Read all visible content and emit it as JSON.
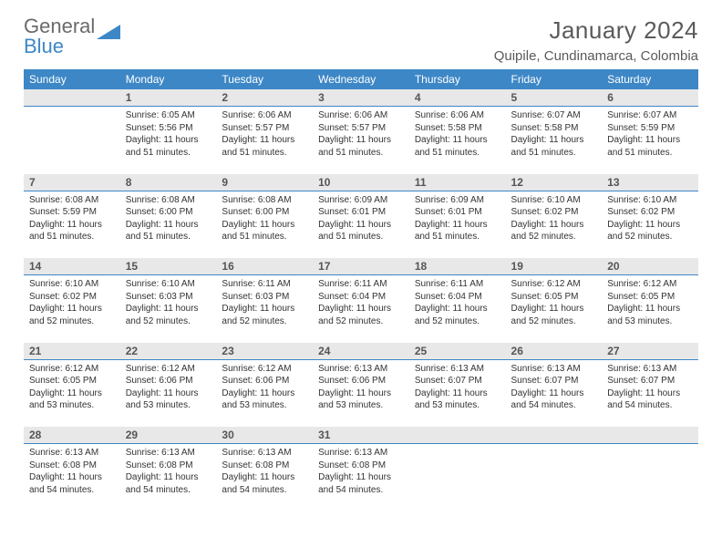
{
  "brand": {
    "part1": "General",
    "part2": "Blue"
  },
  "title": "January 2024",
  "location": "Quipile, Cundinamarca, Colombia",
  "colors": {
    "header_bg": "#3d87c7",
    "header_text": "#ffffff",
    "daynum_bg": "#e8e8e8",
    "daynum_text": "#555555",
    "title_text": "#5a5a5a",
    "body_text": "#333333",
    "divider": "#3d87c7",
    "page_bg": "#ffffff"
  },
  "fonts": {
    "title_size": 26,
    "location_size": 15,
    "th_size": 12,
    "daynum_size": 12,
    "cell_size": 10
  },
  "weekdays": [
    "Sunday",
    "Monday",
    "Tuesday",
    "Wednesday",
    "Thursday",
    "Friday",
    "Saturday"
  ],
  "weeks": [
    [
      {
        "n": "",
        "sr": "",
        "ss": "",
        "dl": ""
      },
      {
        "n": "1",
        "sr": "Sunrise: 6:05 AM",
        "ss": "Sunset: 5:56 PM",
        "dl": "Daylight: 11 hours and 51 minutes."
      },
      {
        "n": "2",
        "sr": "Sunrise: 6:06 AM",
        "ss": "Sunset: 5:57 PM",
        "dl": "Daylight: 11 hours and 51 minutes."
      },
      {
        "n": "3",
        "sr": "Sunrise: 6:06 AM",
        "ss": "Sunset: 5:57 PM",
        "dl": "Daylight: 11 hours and 51 minutes."
      },
      {
        "n": "4",
        "sr": "Sunrise: 6:06 AM",
        "ss": "Sunset: 5:58 PM",
        "dl": "Daylight: 11 hours and 51 minutes."
      },
      {
        "n": "5",
        "sr": "Sunrise: 6:07 AM",
        "ss": "Sunset: 5:58 PM",
        "dl": "Daylight: 11 hours and 51 minutes."
      },
      {
        "n": "6",
        "sr": "Sunrise: 6:07 AM",
        "ss": "Sunset: 5:59 PM",
        "dl": "Daylight: 11 hours and 51 minutes."
      }
    ],
    [
      {
        "n": "7",
        "sr": "Sunrise: 6:08 AM",
        "ss": "Sunset: 5:59 PM",
        "dl": "Daylight: 11 hours and 51 minutes."
      },
      {
        "n": "8",
        "sr": "Sunrise: 6:08 AM",
        "ss": "Sunset: 6:00 PM",
        "dl": "Daylight: 11 hours and 51 minutes."
      },
      {
        "n": "9",
        "sr": "Sunrise: 6:08 AM",
        "ss": "Sunset: 6:00 PM",
        "dl": "Daylight: 11 hours and 51 minutes."
      },
      {
        "n": "10",
        "sr": "Sunrise: 6:09 AM",
        "ss": "Sunset: 6:01 PM",
        "dl": "Daylight: 11 hours and 51 minutes."
      },
      {
        "n": "11",
        "sr": "Sunrise: 6:09 AM",
        "ss": "Sunset: 6:01 PM",
        "dl": "Daylight: 11 hours and 51 minutes."
      },
      {
        "n": "12",
        "sr": "Sunrise: 6:10 AM",
        "ss": "Sunset: 6:02 PM",
        "dl": "Daylight: 11 hours and 52 minutes."
      },
      {
        "n": "13",
        "sr": "Sunrise: 6:10 AM",
        "ss": "Sunset: 6:02 PM",
        "dl": "Daylight: 11 hours and 52 minutes."
      }
    ],
    [
      {
        "n": "14",
        "sr": "Sunrise: 6:10 AM",
        "ss": "Sunset: 6:02 PM",
        "dl": "Daylight: 11 hours and 52 minutes."
      },
      {
        "n": "15",
        "sr": "Sunrise: 6:10 AM",
        "ss": "Sunset: 6:03 PM",
        "dl": "Daylight: 11 hours and 52 minutes."
      },
      {
        "n": "16",
        "sr": "Sunrise: 6:11 AM",
        "ss": "Sunset: 6:03 PM",
        "dl": "Daylight: 11 hours and 52 minutes."
      },
      {
        "n": "17",
        "sr": "Sunrise: 6:11 AM",
        "ss": "Sunset: 6:04 PM",
        "dl": "Daylight: 11 hours and 52 minutes."
      },
      {
        "n": "18",
        "sr": "Sunrise: 6:11 AM",
        "ss": "Sunset: 6:04 PM",
        "dl": "Daylight: 11 hours and 52 minutes."
      },
      {
        "n": "19",
        "sr": "Sunrise: 6:12 AM",
        "ss": "Sunset: 6:05 PM",
        "dl": "Daylight: 11 hours and 52 minutes."
      },
      {
        "n": "20",
        "sr": "Sunrise: 6:12 AM",
        "ss": "Sunset: 6:05 PM",
        "dl": "Daylight: 11 hours and 53 minutes."
      }
    ],
    [
      {
        "n": "21",
        "sr": "Sunrise: 6:12 AM",
        "ss": "Sunset: 6:05 PM",
        "dl": "Daylight: 11 hours and 53 minutes."
      },
      {
        "n": "22",
        "sr": "Sunrise: 6:12 AM",
        "ss": "Sunset: 6:06 PM",
        "dl": "Daylight: 11 hours and 53 minutes."
      },
      {
        "n": "23",
        "sr": "Sunrise: 6:12 AM",
        "ss": "Sunset: 6:06 PM",
        "dl": "Daylight: 11 hours and 53 minutes."
      },
      {
        "n": "24",
        "sr": "Sunrise: 6:13 AM",
        "ss": "Sunset: 6:06 PM",
        "dl": "Daylight: 11 hours and 53 minutes."
      },
      {
        "n": "25",
        "sr": "Sunrise: 6:13 AM",
        "ss": "Sunset: 6:07 PM",
        "dl": "Daylight: 11 hours and 53 minutes."
      },
      {
        "n": "26",
        "sr": "Sunrise: 6:13 AM",
        "ss": "Sunset: 6:07 PM",
        "dl": "Daylight: 11 hours and 54 minutes."
      },
      {
        "n": "27",
        "sr": "Sunrise: 6:13 AM",
        "ss": "Sunset: 6:07 PM",
        "dl": "Daylight: 11 hours and 54 minutes."
      }
    ],
    [
      {
        "n": "28",
        "sr": "Sunrise: 6:13 AM",
        "ss": "Sunset: 6:08 PM",
        "dl": "Daylight: 11 hours and 54 minutes."
      },
      {
        "n": "29",
        "sr": "Sunrise: 6:13 AM",
        "ss": "Sunset: 6:08 PM",
        "dl": "Daylight: 11 hours and 54 minutes."
      },
      {
        "n": "30",
        "sr": "Sunrise: 6:13 AM",
        "ss": "Sunset: 6:08 PM",
        "dl": "Daylight: 11 hours and 54 minutes."
      },
      {
        "n": "31",
        "sr": "Sunrise: 6:13 AM",
        "ss": "Sunset: 6:08 PM",
        "dl": "Daylight: 11 hours and 54 minutes."
      },
      {
        "n": "",
        "sr": "",
        "ss": "",
        "dl": ""
      },
      {
        "n": "",
        "sr": "",
        "ss": "",
        "dl": ""
      },
      {
        "n": "",
        "sr": "",
        "ss": "",
        "dl": ""
      }
    ]
  ]
}
